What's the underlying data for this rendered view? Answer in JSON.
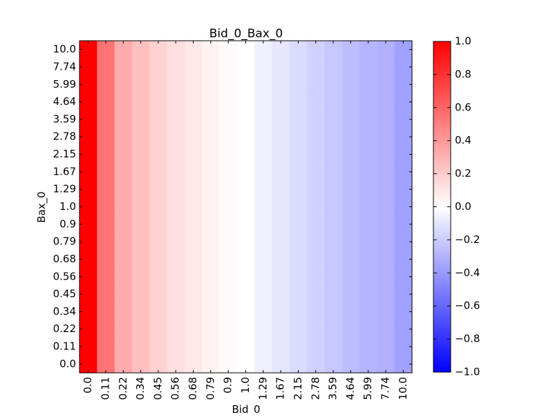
{
  "chart_data": {
    "type": "heatmap",
    "title": "Bid_0_Bax_0",
    "xlabel": "Bid_0",
    "ylabel": "Bax_0",
    "x_ticks": [
      "0.0",
      "0.11",
      "0.22",
      "0.34",
      "0.45",
      "0.56",
      "0.68",
      "0.79",
      "0.9",
      "1.0",
      "1.29",
      "1.67",
      "2.15",
      "2.78",
      "3.59",
      "4.64",
      "5.99",
      "7.74",
      "10.0"
    ],
    "y_ticks": [
      "0.0",
      "0.11",
      "0.22",
      "0.34",
      "0.45",
      "0.56",
      "0.68",
      "0.79",
      "0.9",
      "1.0",
      "1.29",
      "1.67",
      "2.15",
      "2.78",
      "3.59",
      "4.64",
      "5.99",
      "7.74",
      "10.0"
    ],
    "column_values": [
      1.0,
      0.55,
      0.33,
      0.25,
      0.18,
      0.13,
      0.09,
      0.05,
      0.02,
      0.0,
      -0.06,
      -0.1,
      -0.14,
      -0.18,
      -0.22,
      -0.26,
      -0.29,
      -0.31,
      -0.37
    ],
    "colorbar": {
      "colormap": "bwr",
      "vmin": -1.0,
      "vmax": 1.0,
      "ticks": [
        "1.0",
        "0.8",
        "0.6",
        "0.4",
        "0.2",
        "0.0",
        "−0.2",
        "−0.4",
        "−0.6",
        "−0.8",
        "−1.0"
      ]
    },
    "colors": {
      "low": "#0000ff",
      "mid": "#ffffff",
      "high": "#ff0000"
    }
  }
}
